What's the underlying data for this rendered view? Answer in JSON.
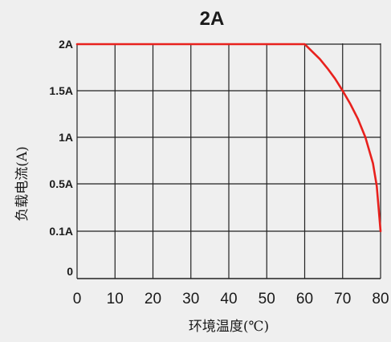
{
  "chart_data": {
    "type": "line",
    "title": "2A",
    "xlabel": "环境温度(℃)",
    "ylabel": "负载电流(A)",
    "xlim": [
      0,
      80
    ],
    "ylim": [
      0,
      2
    ],
    "x_ticks": [
      {
        "value": 0,
        "label": "0"
      },
      {
        "value": 10,
        "label": "10"
      },
      {
        "value": 20,
        "label": "20"
      },
      {
        "value": 30,
        "label": "30"
      },
      {
        "value": 40,
        "label": "40"
      },
      {
        "value": 50,
        "label": "50"
      },
      {
        "value": 60,
        "label": "60"
      },
      {
        "value": 70,
        "label": "70"
      },
      {
        "value": 80,
        "label": "80"
      }
    ],
    "y_ticks": [
      {
        "value": 0,
        "label": "0"
      },
      {
        "value": 0.1,
        "label": "0.1A"
      },
      {
        "value": 0.5,
        "label": "0.5A"
      },
      {
        "value": 1,
        "label": "1A"
      },
      {
        "value": 1.5,
        "label": "1.5A"
      },
      {
        "value": 2,
        "label": "2A"
      }
    ],
    "x_gridlines": [
      0,
      10,
      20,
      30,
      40,
      50,
      60,
      70,
      80
    ],
    "grid": true,
    "series": [
      {
        "color": "#e8211d",
        "points": [
          {
            "x": 0,
            "y": 2.0
          },
          {
            "x": 60,
            "y": 2.0
          },
          {
            "x": 62,
            "y": 1.92
          },
          {
            "x": 64,
            "y": 1.84
          },
          {
            "x": 66,
            "y": 1.74
          },
          {
            "x": 68,
            "y": 1.63
          },
          {
            "x": 70,
            "y": 1.5
          },
          {
            "x": 72,
            "y": 1.36
          },
          {
            "x": 74,
            "y": 1.2
          },
          {
            "x": 76,
            "y": 1.0
          },
          {
            "x": 78,
            "y": 0.72
          },
          {
            "x": 79,
            "y": 0.48
          },
          {
            "x": 80,
            "y": 0.1
          }
        ]
      }
    ],
    "colors": {
      "background": "#efefef",
      "grid": "#222222",
      "line": "#e8211d",
      "text": "#1a1a1a"
    }
  }
}
